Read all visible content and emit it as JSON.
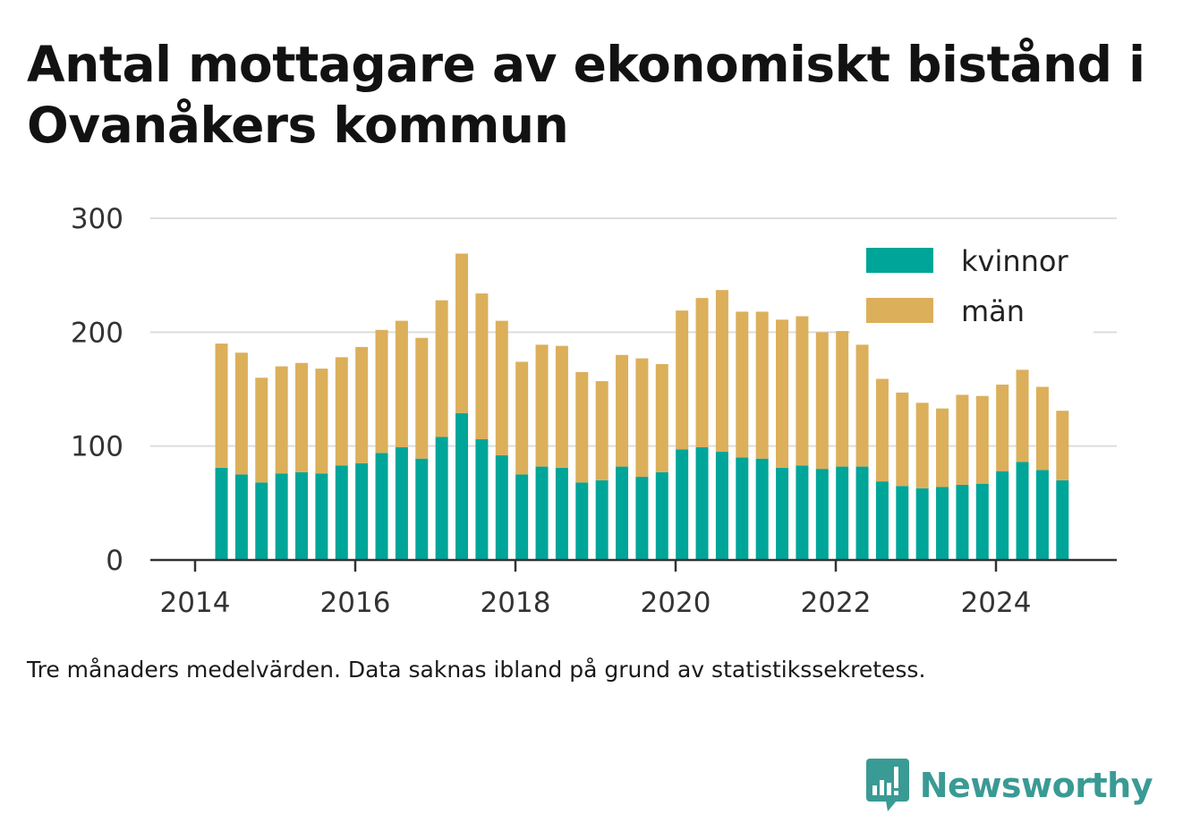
{
  "title": "Antal mottagare av ekonomiskt bistånd i Ovanåkers kommun",
  "note": "Tre månaders medelvärden. Data saknas ibland på grund av statistikssekretess.",
  "brand": {
    "name": "Newsworthy",
    "icon": "bar-chart-speech-bubble-icon",
    "color": "#3a9a94"
  },
  "colors": {
    "kvinnor": "#00a599",
    "man": "#dcaf5b",
    "grid": "#dddddd",
    "axis": "#333333"
  },
  "chart_data": {
    "type": "bar",
    "stacked": true,
    "xlabel": "",
    "ylabel": "",
    "ylim": [
      0,
      300
    ],
    "yticks": [
      0,
      100,
      200,
      300
    ],
    "xticks": [
      "2014",
      "2016",
      "2018",
      "2020",
      "2022",
      "2024"
    ],
    "xlim": [
      2013.8,
      2025.5
    ],
    "grid": "horizontal",
    "legend_position": "top-right",
    "x": [
      2014.33,
      2014.58,
      2014.83,
      2015.08,
      2015.33,
      2015.58,
      2015.83,
      2016.08,
      2016.33,
      2016.58,
      2016.83,
      2017.08,
      2017.33,
      2017.58,
      2017.83,
      2018.08,
      2018.33,
      2018.58,
      2018.83,
      2019.08,
      2019.33,
      2019.58,
      2019.83,
      2020.08,
      2020.33,
      2020.58,
      2020.83,
      2021.08,
      2021.33,
      2021.58,
      2021.83,
      2022.08,
      2022.33,
      2022.58,
      2022.83,
      2023.08,
      2023.33,
      2023.58,
      2023.83,
      2024.08,
      2024.33,
      2024.58,
      2024.83
    ],
    "series": [
      {
        "name": "kvinnor",
        "color": "#00a599",
        "values": [
          81,
          75,
          68,
          76,
          77,
          76,
          83,
          85,
          94,
          99,
          89,
          108,
          129,
          106,
          92,
          75,
          82,
          81,
          68,
          70,
          82,
          73,
          77,
          97,
          99,
          95,
          90,
          89,
          81,
          83,
          80,
          82,
          82,
          69,
          65,
          63,
          64,
          66,
          67,
          78,
          86,
          79,
          70
        ]
      },
      {
        "name": "män",
        "color": "#dcaf5b",
        "values": [
          109,
          107,
          92,
          94,
          96,
          92,
          95,
          102,
          108,
          111,
          106,
          120,
          140,
          128,
          118,
          99,
          107,
          107,
          97,
          87,
          98,
          104,
          95,
          122,
          131,
          142,
          128,
          129,
          130,
          131,
          120,
          119,
          107,
          90,
          82,
          75,
          69,
          79,
          77,
          76,
          81,
          73,
          61
        ]
      }
    ]
  }
}
